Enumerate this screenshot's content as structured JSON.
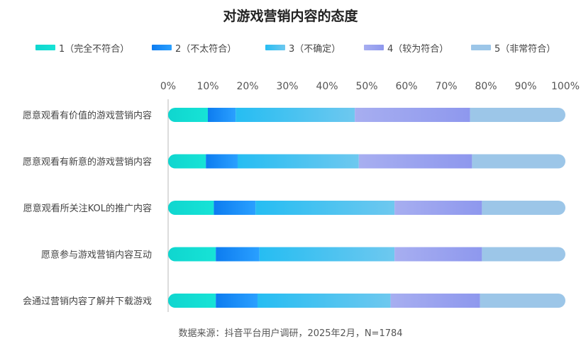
{
  "chart_data": {
    "type": "bar",
    "orientation": "horizontal",
    "stacked": true,
    "percent": true,
    "title": "对游戏营销内容的态度",
    "categories": [
      "愿意观看有价值的游戏营销内容",
      "愿意观看有新意的游戏营销内容",
      "愿意观看所关注KOL的推广内容",
      "愿意参与游戏营销内容互动",
      "会通过营销内容了解并下载游戏"
    ],
    "series": [
      {
        "name": "1（完全不符合）",
        "values": [
          10.0,
          9.5,
          11.5,
          12.0,
          12.0
        ],
        "color_from": "#0fd6cf",
        "color_to": "#17e3d6"
      },
      {
        "name": "2（不太符合）",
        "values": [
          7.0,
          8.0,
          10.5,
          11.0,
          10.5
        ],
        "color_from": "#0d7cf0",
        "color_to": "#2aa0ff"
      },
      {
        "name": "3（不确定）",
        "values": [
          30.0,
          30.5,
          35.0,
          34.0,
          33.5
        ],
        "color_from": "#26bdf2",
        "color_to": "#6ec8ef"
      },
      {
        "name": "4（较为符合）",
        "values": [
          29.0,
          28.5,
          22.0,
          22.0,
          22.5
        ],
        "color_from": "#a7aef0",
        "color_to": "#8e98ee"
      },
      {
        "name": "5（非常符合）",
        "values": [
          24.0,
          23.5,
          21.0,
          21.0,
          21.5
        ],
        "color_from": "#9cc6e8",
        "color_to": "#9cc6e8"
      }
    ],
    "xlim": [
      0,
      100
    ],
    "xticks": [
      "0%",
      "10%",
      "20%",
      "30%",
      "40%",
      "50%",
      "60%",
      "70%",
      "80%",
      "90%",
      "100%"
    ],
    "legend_position": "top",
    "grid": false
  },
  "footer": {
    "source": "数据来源：抖音平台用户调研，2025年2月，N=1784"
  }
}
